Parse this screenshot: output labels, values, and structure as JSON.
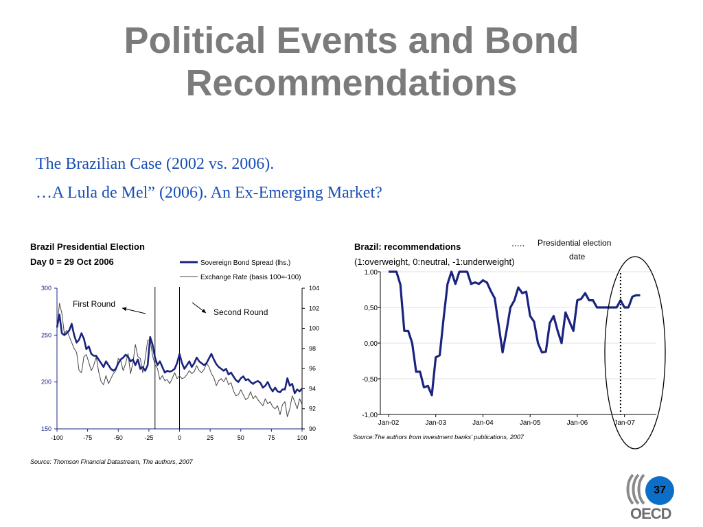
{
  "slide": {
    "title_line1": "Political Events and Bond",
    "title_line2": "Recommendations",
    "subtitle_line1": "The Brazilian Case (2002 vs. 2006).",
    "subtitle_line2": "…A Lula de Mel” (2006). An Ex-Emerging Market?",
    "page_number": "37",
    "logo_text": "OECD"
  },
  "chart_data": [
    {
      "type": "line",
      "title": "Brazil Presidential Election",
      "subtitle": "Day 0 = 29 Oct 2006",
      "x_ticks": [
        -100,
        -75,
        -50,
        -25,
        0,
        25,
        50,
        75,
        100
      ],
      "xlim": [
        -100,
        100
      ],
      "ylim_left": [
        150,
        300
      ],
      "y_ticks_left": [
        150,
        200,
        250,
        300
      ],
      "ylim_right": [
        90,
        104
      ],
      "y_ticks_right": [
        90,
        92,
        94,
        96,
        98,
        100,
        102,
        104
      ],
      "grid": false,
      "legend_position": "top-right",
      "vertical_lines_at": [
        -20,
        0
      ],
      "annotations": [
        "First Round",
        "Second Round"
      ],
      "source": "Source: Thomson Financial Datastream, The authors, 2007",
      "series": [
        {
          "name": "Sovereign Bond Spread (lhs.)",
          "axis": "left",
          "color": "#1a237e",
          "x": [
            -100,
            -98,
            -96,
            -94,
            -92,
            -90,
            -88,
            -86,
            -84,
            -82,
            -80,
            -78,
            -76,
            -74,
            -72,
            -70,
            -68,
            -66,
            -64,
            -62,
            -60,
            -58,
            -56,
            -54,
            -52,
            -50,
            -48,
            -46,
            -44,
            -42,
            -40,
            -38,
            -36,
            -34,
            -32,
            -30,
            -28,
            -26,
            -24,
            -22,
            -20,
            -18,
            -16,
            -14,
            -12,
            -10,
            -8,
            -6,
            -4,
            -2,
            0,
            2,
            4,
            6,
            8,
            10,
            12,
            14,
            16,
            18,
            20,
            22,
            24,
            26,
            28,
            30,
            32,
            34,
            36,
            38,
            40,
            42,
            44,
            46,
            48,
            50,
            52,
            54,
            56,
            58,
            60,
            62,
            64,
            66,
            68,
            70,
            72,
            74,
            76,
            78,
            80,
            82,
            84,
            86,
            88,
            90,
            92,
            94,
            96,
            98,
            100
          ],
          "values": [
            258,
            272,
            252,
            250,
            252,
            255,
            262,
            250,
            242,
            245,
            252,
            246,
            235,
            238,
            230,
            228,
            228,
            224,
            220,
            216,
            222,
            218,
            214,
            212,
            214,
            220,
            224,
            226,
            229,
            227,
            222,
            224,
            218,
            224,
            214,
            216,
            212,
            218,
            248,
            240,
            226,
            218,
            222,
            216,
            210,
            212,
            211,
            212,
            214,
            220,
            230,
            220,
            214,
            218,
            222,
            216,
            220,
            226,
            222,
            220,
            218,
            220,
            225,
            230,
            224,
            219,
            216,
            214,
            212,
            214,
            208,
            210,
            206,
            202,
            200,
            204,
            206,
            202,
            203,
            200,
            198,
            200,
            201,
            199,
            194,
            196,
            200,
            194,
            190,
            194,
            190,
            189,
            192,
            192,
            204,
            196,
            198,
            188,
            192,
            190,
            193
          ]
        },
        {
          "name": "Exchange Rate (basis 100=-100)",
          "axis": "right",
          "color": "#444444",
          "x": [
            -100,
            -98,
            -96,
            -94,
            -92,
            -90,
            -88,
            -86,
            -84,
            -82,
            -80,
            -78,
            -76,
            -74,
            -72,
            -70,
            -68,
            -66,
            -64,
            -62,
            -60,
            -58,
            -56,
            -54,
            -52,
            -50,
            -48,
            -46,
            -44,
            -42,
            -40,
            -38,
            -36,
            -34,
            -32,
            -30,
            -28,
            -26,
            -24,
            -22,
            -20,
            -18,
            -16,
            -14,
            -12,
            -10,
            -8,
            -6,
            -4,
            -2,
            0,
            2,
            4,
            6,
            8,
            10,
            12,
            14,
            16,
            18,
            20,
            22,
            24,
            26,
            28,
            30,
            32,
            34,
            36,
            38,
            40,
            42,
            44,
            46,
            48,
            50,
            52,
            54,
            56,
            58,
            60,
            62,
            64,
            66,
            68,
            70,
            72,
            74,
            76,
            78,
            80,
            82,
            84,
            86,
            88,
            90,
            92,
            94,
            96,
            98,
            100
          ],
          "values": [
            100,
            102.5,
            101.5,
            99.5,
            99.8,
            99.2,
            98.6,
            98.0,
            97.6,
            95.8,
            95.6,
            97.2,
            97.4,
            96.6,
            95.8,
            96.3,
            97.2,
            95.7,
            94.7,
            94.4,
            95.3,
            94.5,
            95.0,
            95.5,
            95.8,
            97.0,
            96.8,
            95.8,
            96.5,
            97.5,
            95.5,
            96.6,
            98.4,
            97.2,
            97.0,
            95.6,
            97.0,
            98.8,
            98.9,
            97.3,
            96.4,
            96.0,
            94.9,
            95.3,
            94.8,
            94.9,
            94.5,
            95.0,
            95.6,
            95.0,
            95.3,
            95.0,
            95.1,
            95.4,
            95.8,
            95.5,
            95.7,
            96.3,
            95.8,
            95.6,
            95.9,
            96.5,
            96.2,
            95.5,
            95.1,
            94.3,
            94.8,
            95.0,
            94.7,
            95.1,
            94.4,
            94.6,
            93.8,
            93.3,
            93.4,
            93.9,
            93.4,
            92.9,
            93.1,
            93.7,
            93.0,
            93.3,
            92.9,
            92.6,
            92.3,
            93.0,
            92.5,
            92.7,
            92.2,
            92.0,
            92.3,
            91.4,
            92.4,
            92.7,
            91.2,
            92.0,
            93.3,
            92.7,
            92.0,
            93.0,
            92.4
          ]
        }
      ]
    },
    {
      "type": "line",
      "title": "Brazil: recommendations",
      "subtitle": "(1:overweight, 0:neutral, -1:underweight)",
      "x_ticks": [
        "Jan-02",
        "Jan-03",
        "Jan-04",
        "Jan-05",
        "Jan-06",
        "Jan-07"
      ],
      "ylim": [
        -1,
        1
      ],
      "y_ticks": [
        "-1,00",
        "-0,50",
        "0,00",
        "0,50",
        "1,00"
      ],
      "y_tick_values": [
        -1,
        -0.5,
        0,
        0.5,
        1
      ],
      "grid": true,
      "legend": [
        {
          "marker": ".....",
          "label": "Presidential election date"
        }
      ],
      "election_marker_month": 59,
      "source": "Source:The authors from investment banks' publications, 2007",
      "series": [
        {
          "color": "#1a237e",
          "month_index": [
            0,
            1,
            2,
            3,
            4,
            5,
            6,
            7,
            8,
            9,
            10,
            11,
            12,
            13,
            14,
            15,
            16,
            17,
            18,
            19,
            20,
            21,
            22,
            23,
            24,
            25,
            26,
            27,
            28,
            29,
            30,
            31,
            32,
            33,
            34,
            35,
            36,
            37,
            38,
            39,
            40,
            41,
            42,
            43,
            44,
            45,
            46,
            47,
            48,
            49,
            50,
            51,
            52,
            53,
            54,
            55,
            56,
            57,
            58,
            59,
            60,
            61,
            62,
            63,
            64
          ],
          "values": [
            1.0,
            1.0,
            1.0,
            0.82,
            0.17,
            0.17,
            0.0,
            -0.4,
            -0.4,
            -0.62,
            -0.6,
            -0.73,
            -0.2,
            -0.17,
            0.35,
            0.83,
            1.0,
            0.83,
            1.0,
            1.0,
            1.0,
            0.83,
            0.85,
            0.83,
            0.88,
            0.85,
            0.73,
            0.63,
            0.25,
            -0.13,
            0.17,
            0.5,
            0.6,
            0.78,
            0.7,
            0.72,
            0.38,
            0.3,
            0.0,
            -0.13,
            -0.12,
            0.28,
            0.38,
            0.17,
            0.0,
            0.43,
            0.3,
            0.17,
            0.6,
            0.62,
            0.7,
            0.6,
            0.6,
            0.5,
            0.5,
            0.5,
            0.5,
            0.5,
            0.5,
            0.6,
            0.5,
            0.5,
            0.65,
            0.67,
            0.67
          ]
        }
      ]
    }
  ]
}
